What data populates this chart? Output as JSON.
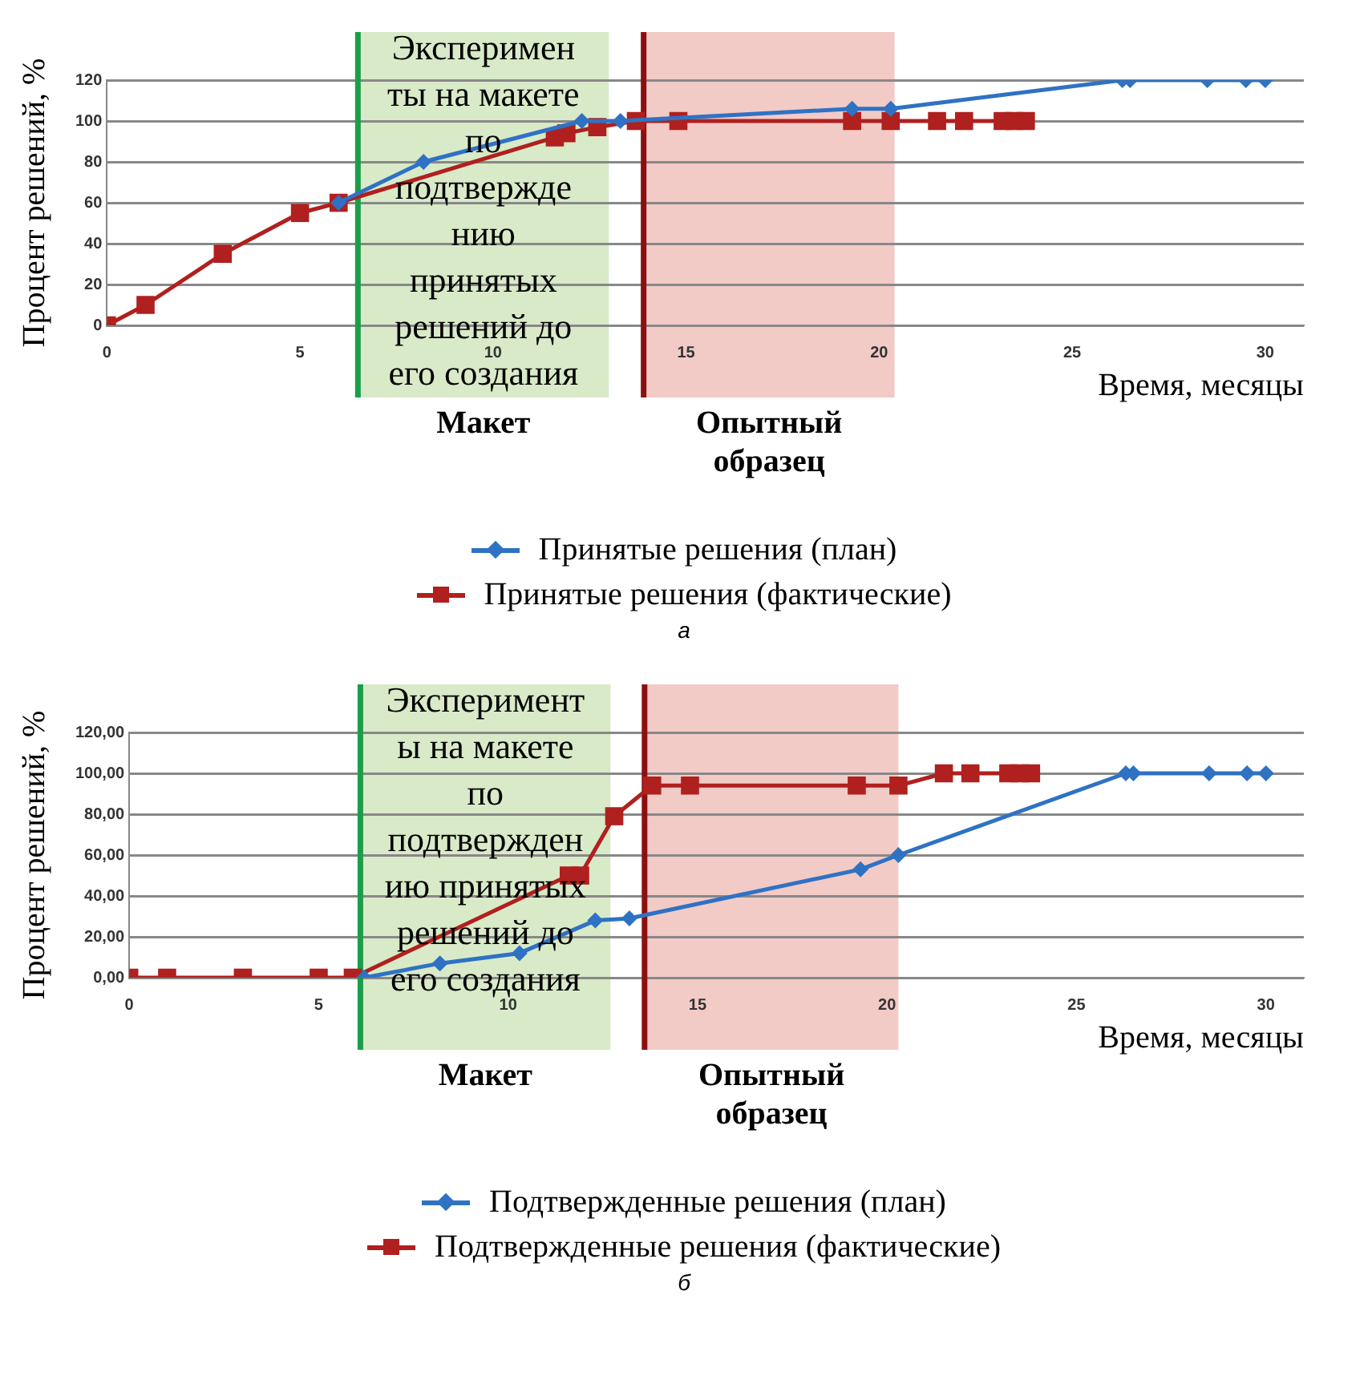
{
  "chart_data": [
    {
      "type": "line",
      "xlabel": "Время, месяцы",
      "ylabel": "Процент решений, %",
      "xlim": [
        0,
        31
      ],
      "xticks": [
        0,
        5,
        10,
        15,
        20,
        25,
        30
      ],
      "ylim": [
        0,
        120
      ],
      "yticks": [
        0,
        20,
        40,
        60,
        80,
        100,
        120
      ],
      "grid": "y",
      "legend": "bottom",
      "series": [
        {
          "name": "Принятые решения (план)",
          "color": "#2f72c4",
          "marker": "diamond",
          "x": [
            6,
            8.2,
            12.3,
            13.3,
            19.3,
            20.3,
            26.3,
            26.5,
            28.5,
            29.5,
            30
          ],
          "values": [
            60,
            80,
            100,
            100,
            106,
            106,
            120,
            120,
            120,
            120,
            120
          ]
        },
        {
          "name": "Принятые решения (фактические)",
          "color": "#b0201e",
          "marker": "square",
          "x": [
            0,
            1,
            3,
            5,
            6,
            11.6,
            11.9,
            12.7,
            13.7,
            14.8,
            19.3,
            20.3,
            21.5,
            22.2,
            23.2,
            23.5,
            23.8
          ],
          "values": [
            0,
            10,
            35,
            55,
            60,
            92,
            94,
            97,
            100,
            100,
            100,
            100,
            100,
            100,
            100,
            100,
            100
          ]
        }
      ],
      "bands": [
        {
          "axis": "x",
          "from": 6.5,
          "to": 13,
          "label": "Макет",
          "color": "#d8eac8"
        },
        {
          "axis": "x",
          "from": 13.9,
          "to": 20.4,
          "label": "Опытный образец",
          "color": "#f2cac6"
        }
      ],
      "ref_lines": [
        {
          "axis": "x",
          "value": 6.5,
          "color": "#1a9e4a"
        },
        {
          "axis": "x",
          "value": 13.9,
          "color": "#8c1010"
        }
      ],
      "annotations": [
        "Эксперимен\nты на макете\nпо\nподтвержде\nнию\nпринятых\nрешений до\nего создания",
        "а"
      ]
    },
    {
      "type": "line",
      "xlabel": "Время, месяцы",
      "ylabel": "Процент решений, %",
      "xlim": [
        0,
        31
      ],
      "xticks": [
        0,
        5,
        10,
        15,
        20,
        25,
        30
      ],
      "ylim": [
        0,
        120
      ],
      "yticks": [
        {
          "value": 0,
          "label": "0,00"
        },
        {
          "value": 20,
          "label": "20,00"
        },
        {
          "value": 40,
          "label": "40,00"
        },
        {
          "value": 60,
          "label": "60,00"
        },
        {
          "value": 80,
          "label": "80,00"
        },
        {
          "value": 100,
          "label": "100,00"
        },
        {
          "value": 120,
          "label": "120,00"
        }
      ],
      "grid": "y",
      "legend": "bottom",
      "series": [
        {
          "name": "Подтвержденные решения (план)",
          "color": "#2f72c4",
          "marker": "diamond",
          "x": [
            6.2,
            8.2,
            10.3,
            12.3,
            13.2,
            19.3,
            20.3,
            26.3,
            26.5,
            28.5,
            29.5,
            30
          ],
          "values": [
            0,
            7,
            12,
            28,
            29,
            53,
            60,
            100,
            100,
            100,
            100,
            100
          ]
        },
        {
          "name": "Подтвержденные решения (фактические)",
          "color": "#b0201e",
          "marker": "square",
          "x": [
            0,
            1,
            3,
            5,
            5.9,
            11.6,
            11.9,
            12.8,
            13.8,
            14.8,
            19.2,
            20.3,
            21.5,
            22.2,
            23.2,
            23.5,
            23.8
          ],
          "values": [
            0,
            0,
            0,
            0,
            0,
            50,
            50,
            79,
            94,
            94,
            94,
            94,
            100,
            100,
            100,
            100,
            100
          ]
        }
      ],
      "bands": [
        {
          "axis": "x",
          "from": 6.1,
          "to": 12.7,
          "label": "Макет",
          "color": "#d8eac8"
        },
        {
          "axis": "x",
          "from": 13.6,
          "to": 20.3,
          "label": "Опытный образец",
          "color": "#f2cac6"
        }
      ],
      "ref_lines": [
        {
          "axis": "x",
          "value": 6.1,
          "color": "#1a9e4a"
        },
        {
          "axis": "x",
          "value": 13.6,
          "color": "#8c1010"
        }
      ],
      "annotations": [
        "Эксперимент\nы на макете\nпо\nподтвержден\nию принятых\nрешений до\nего создания",
        "б"
      ]
    }
  ]
}
